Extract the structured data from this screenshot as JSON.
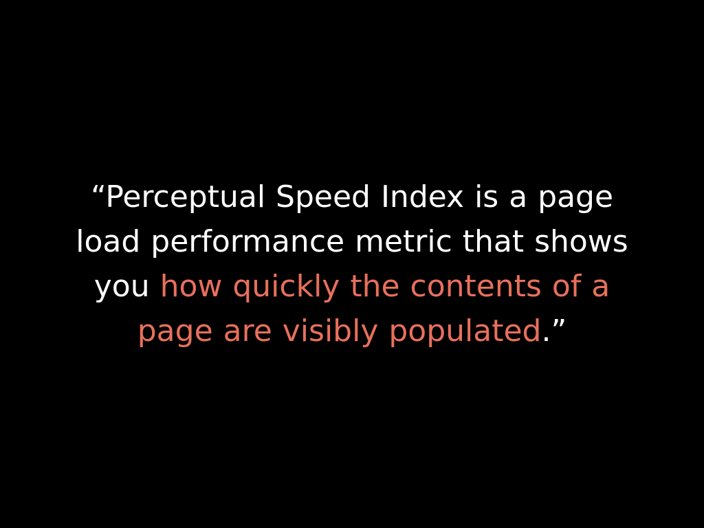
{
  "colors": {
    "background": "#000000",
    "text": "#ffffff",
    "highlight": "#e8705c"
  },
  "quote": {
    "line1": "“Perceptual Speed Index is a page",
    "line2": "load performance metric that shows",
    "line3_plain": "you ",
    "line3_highlight": "how quickly the contents of a",
    "line4_highlight": "page are visibly populated",
    "line4_plain": ".”"
  }
}
